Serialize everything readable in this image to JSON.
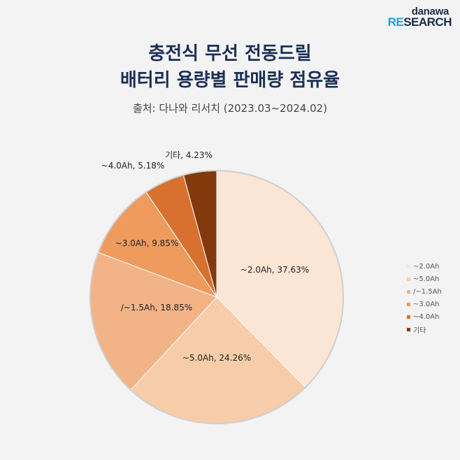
{
  "logo": {
    "top": "danawa",
    "bottom_accent": "RE",
    "bottom_rest": "SEARCH"
  },
  "chart_data": {
    "type": "pie",
    "title_line1": "충전식 무선 전동드릴",
    "title_line2": "배터리 용량별 판매량 점유율",
    "subtitle": "출처: 다나와 리서치 (2023.03~2024.02)",
    "legend_position": "right",
    "slices": [
      {
        "label": "~2.0Ah",
        "value": 37.63,
        "data_label": "~2.0Ah, 37.63%",
        "color": "#fbe5d5"
      },
      {
        "label": "~5.0Ah",
        "value": 24.26,
        "data_label": "~5.0Ah, 24.26%",
        "color": "#f6cca9"
      },
      {
        "label": "/~1.5Ah",
        "value": 18.85,
        "data_label": "/~1.5Ah, 18.85%",
        "color": "#f2b387"
      },
      {
        "label": "~3.0Ah",
        "value": 9.85,
        "data_label": "~3.0Ah, 9.85%",
        "color": "#ee9b5d"
      },
      {
        "label": "~4.0Ah",
        "value": 5.18,
        "data_label": "~4.0Ah, 5.18%",
        "color": "#d8712f"
      },
      {
        "label": "기타",
        "value": 4.23,
        "data_label": "기타, 4.23%",
        "color": "#823a0d"
      }
    ]
  }
}
